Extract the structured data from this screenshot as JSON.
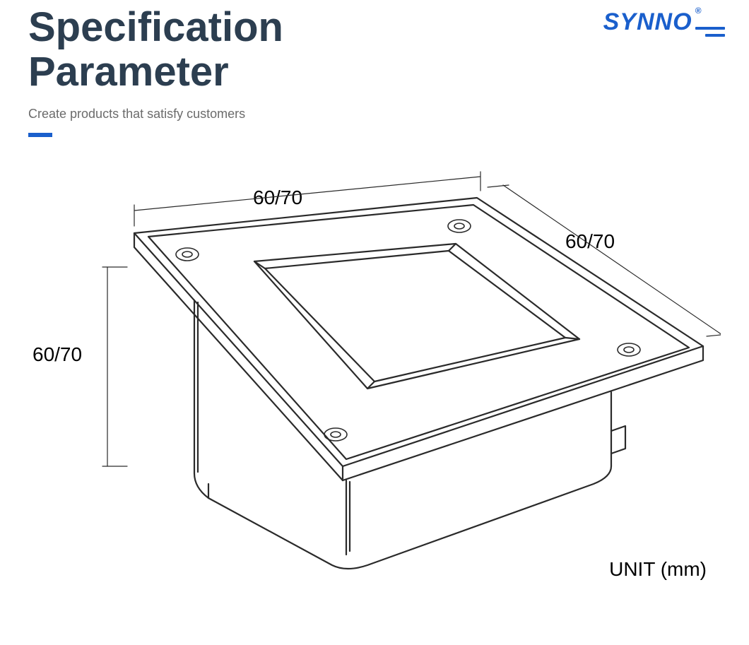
{
  "header": {
    "title_line1": "Specification",
    "title_line2": "Parameter",
    "title_color": "#2c3e50",
    "title_fontsize": 58,
    "subtitle": "Create products that satisfy customers",
    "subtitle_color": "#6b6b6b",
    "subtitle_fontsize": 18,
    "accent_bar_color": "#1a5fcc",
    "accent_bar_width": 34,
    "accent_bar_height": 6
  },
  "logo": {
    "text": "SYNNO",
    "reg_mark": "®",
    "color": "#1a5fcc",
    "fontsize": 34,
    "menu_bar_color": "#1a5fcc",
    "menu_bar_widths": [
      42,
      28
    ]
  },
  "diagram": {
    "stroke_color": "#2a2a2a",
    "stroke_width_outer": 2.2,
    "stroke_width_inner": 1.6,
    "dim_stroke_width": 1.2,
    "background_color": "#ffffff",
    "dimensions": {
      "width_label": "60/70",
      "depth_label": "60/70",
      "height_label": "60/70",
      "label_fontsize": 28,
      "label_color": "#000000"
    },
    "unit_label": "UNIT (mm)",
    "unit_fontsize": 28,
    "unit_color": "#000000"
  }
}
